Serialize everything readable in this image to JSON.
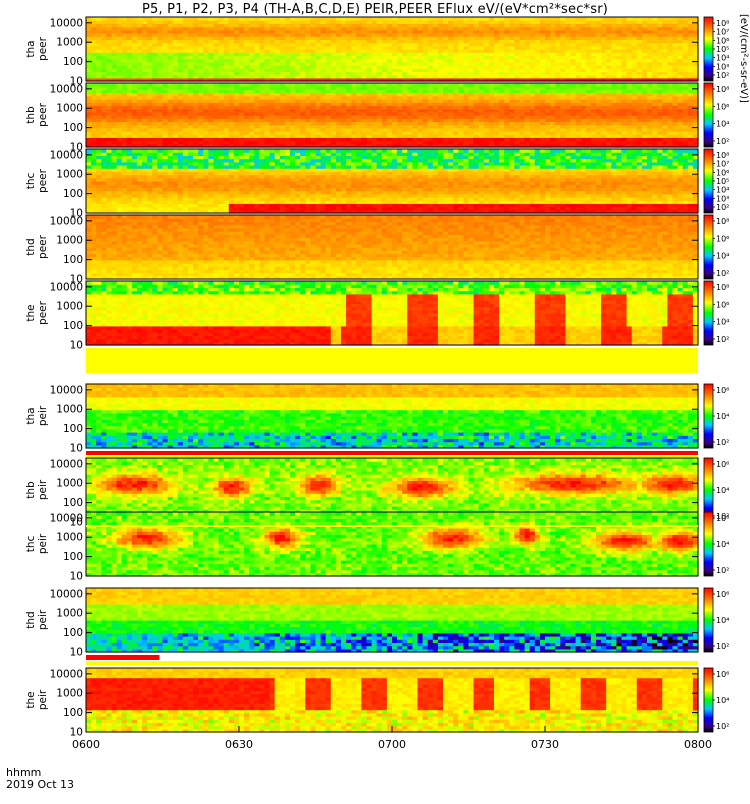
{
  "title": "P5, P1, P2, P3, P4 (TH-A,B,C,D,E) PEIR,PEER EFlux eV/(eV*cm²*sec*sr)",
  "time_axis": {
    "header": "hhmm",
    "date": "2019 Oct 13",
    "ticks": [
      "0600",
      "0630",
      "0700",
      "0730",
      "0800"
    ]
  },
  "colorbar_title": "[eV/(cm²-s-sr-eV)]",
  "colors": {
    "black": "#000000",
    "red": "#ff0000",
    "yellow": "#ffff00",
    "green": "#00ff00",
    "blue": "#0000ff"
  },
  "chart_data": [
    {
      "type": "heatmap",
      "ylabel_top": "tha",
      "ylabel_bottom": "peer",
      "yscale": "log",
      "ylim": [
        10,
        20000
      ],
      "yticks": [
        "10000",
        "1000",
        "100",
        "10"
      ],
      "xlim": [
        "06:00",
        "08:00"
      ],
      "cbar_ticks": [
        "10⁸",
        "10⁷",
        "10⁶",
        "10⁵",
        "10⁴",
        "10³",
        "10²"
      ]
    },
    {
      "type": "heatmap",
      "ylabel_top": "thb",
      "ylabel_bottom": "peer",
      "yscale": "log",
      "ylim": [
        10,
        20000
      ],
      "yticks": [
        "10000",
        "1000",
        "100",
        "10"
      ],
      "xlim": [
        "06:00",
        "08:00"
      ],
      "cbar_ticks": [
        "10⁸",
        "10⁶",
        "10⁴",
        "10²"
      ]
    },
    {
      "type": "heatmap",
      "ylabel_top": "thc",
      "ylabel_bottom": "peer",
      "yscale": "log",
      "ylim": [
        10,
        20000
      ],
      "yticks": [
        "10000",
        "1000",
        "100",
        "10"
      ],
      "xlim": [
        "06:00",
        "08:00"
      ],
      "cbar_ticks": [
        "10⁸",
        "10⁷",
        "10⁶",
        "10⁵",
        "10⁴",
        "10³",
        "10²"
      ]
    },
    {
      "type": "heatmap",
      "ylabel_top": "thd",
      "ylabel_bottom": "peer",
      "yscale": "log",
      "ylim": [
        10,
        20000
      ],
      "yticks": [
        "10000",
        "1000",
        "100",
        "10"
      ],
      "xlim": [
        "06:00",
        "08:00"
      ],
      "cbar_ticks": [
        "10⁸",
        "10⁶",
        "10⁴",
        "10²"
      ]
    },
    {
      "type": "heatmap",
      "ylabel_top": "the",
      "ylabel_bottom": "peer",
      "yscale": "log",
      "ylim": [
        10,
        20000
      ],
      "yticks": [
        "10000",
        "1000",
        "100",
        "10"
      ],
      "xlim": [
        "06:00",
        "08:00"
      ],
      "cbar_ticks": [
        "10⁸",
        "10⁶",
        "10⁴",
        "10²"
      ]
    },
    {
      "type": "heatmap",
      "ylabel_top": "tha",
      "ylabel_bottom": "peir",
      "yscale": "log",
      "ylim": [
        10,
        20000
      ],
      "yticks": [
        "10000",
        "1000",
        "100",
        "10"
      ],
      "xlim": [
        "06:00",
        "08:00"
      ],
      "cbar_ticks": [
        "10⁶",
        "10⁴",
        "10²"
      ]
    },
    {
      "type": "heatmap",
      "ylabel_top": "thb",
      "ylabel_bottom": "peir",
      "yscale": "log",
      "ylim": [
        10,
        20000
      ],
      "yticks": [
        "10000",
        "1000",
        "100",
        "10"
      ],
      "xlim": [
        "06:00",
        "08:00"
      ],
      "cbar_ticks": [
        "10⁶",
        "10⁴",
        "10²"
      ]
    },
    {
      "type": "heatmap",
      "ylabel_top": "thc",
      "ylabel_bottom": "peir",
      "yscale": "log",
      "ylim": [
        10,
        20000
      ],
      "yticks": [
        "10000",
        "1000",
        "100",
        "10"
      ],
      "xlim": [
        "06:00",
        "08:00"
      ],
      "cbar_ticks": [
        "10⁶",
        "10⁴",
        "10²"
      ]
    },
    {
      "type": "heatmap",
      "ylabel_top": "thd",
      "ylabel_bottom": "peir",
      "yscale": "log",
      "ylim": [
        10,
        20000
      ],
      "yticks": [
        "10000",
        "1000",
        "100",
        "10"
      ],
      "xlim": [
        "06:00",
        "08:00"
      ],
      "cbar_ticks": [
        "10⁶",
        "10⁴",
        "10²"
      ]
    },
    {
      "type": "heatmap",
      "ylabel_top": "the",
      "ylabel_bottom": "peir",
      "yscale": "log",
      "ylim": [
        10,
        20000
      ],
      "yticks": [
        "10000",
        "1000",
        "100",
        "10"
      ],
      "xlim": [
        "06:00",
        "08:00"
      ],
      "cbar_ticks": [
        "10⁶",
        "10⁴",
        "10²"
      ]
    }
  ]
}
